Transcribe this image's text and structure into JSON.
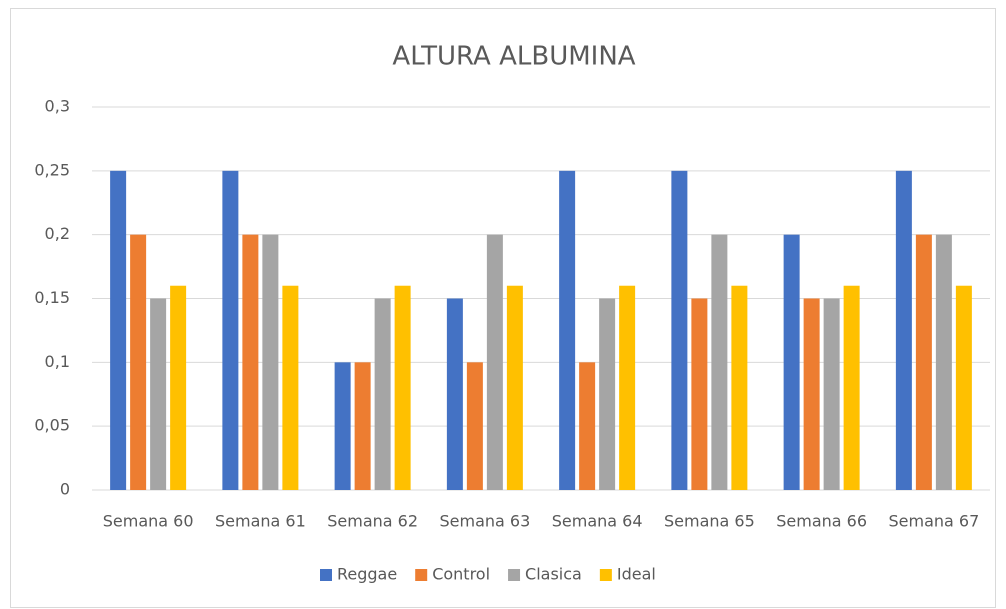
{
  "chart_data": {
    "type": "bar",
    "title": "ALTURA ALBUMINA",
    "categories": [
      "Semana 60",
      "Semana 61",
      "Semana 62",
      "Semana 63",
      "Semana 64",
      "Semana 65",
      "Semana 66",
      "Semana 67"
    ],
    "series": [
      {
        "name": "Reggae",
        "color": "#4472c4",
        "values": [
          0.25,
          0.25,
          0.1,
          0.15,
          0.25,
          0.25,
          0.2,
          0.25
        ]
      },
      {
        "name": "Control",
        "color": "#ed7d31",
        "values": [
          0.2,
          0.2,
          0.1,
          0.1,
          0.1,
          0.15,
          0.15,
          0.2
        ]
      },
      {
        "name": "Clasica",
        "color": "#a5a5a5",
        "values": [
          0.15,
          0.2,
          0.15,
          0.2,
          0.15,
          0.2,
          0.15,
          0.2
        ]
      },
      {
        "name": "Ideal",
        "color": "#ffc000",
        "values": [
          0.16,
          0.16,
          0.16,
          0.16,
          0.16,
          0.16,
          0.16,
          0.16
        ]
      }
    ],
    "ylim": [
      0,
      0.3
    ],
    "yticks": [
      0,
      {
        "value": 0.05,
        "label": "0,05"
      },
      {
        "value": 0.1,
        "label": "0,1"
      },
      {
        "value": 0.15,
        "label": "0,15"
      },
      {
        "value": 0.2,
        "label": "0,2"
      },
      {
        "value": 0.25,
        "label": "0,25"
      },
      {
        "value": 0.3,
        "label": "0,3"
      }
    ],
    "grid": true,
    "legend": "bottom"
  }
}
